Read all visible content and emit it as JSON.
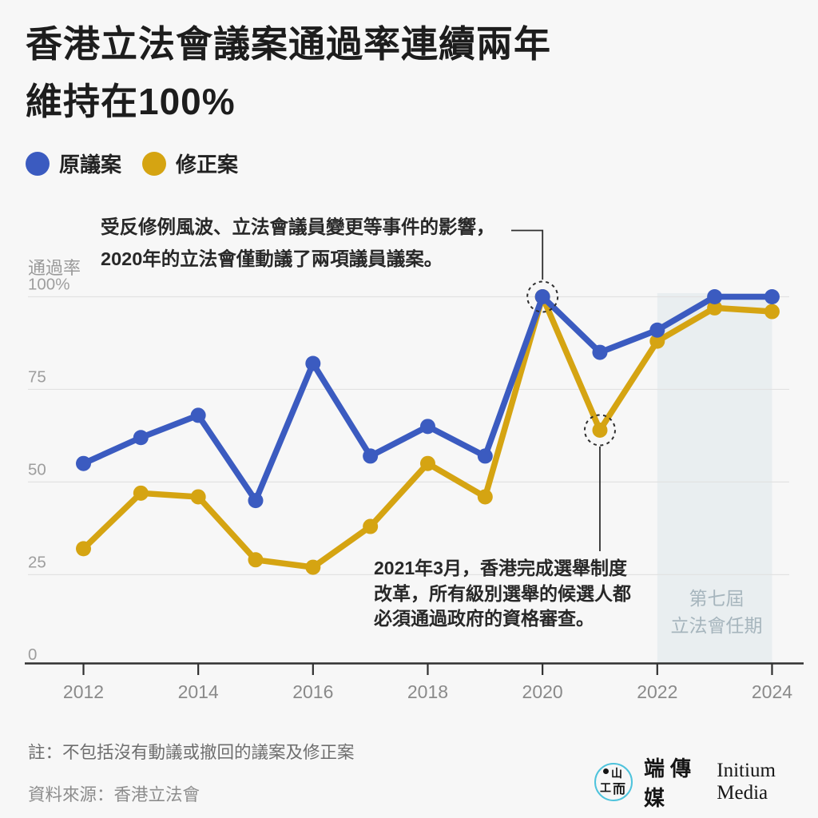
{
  "title": {
    "lines": [
      "香港立法會議案通過率連續兩年",
      "維持在100%"
    ]
  },
  "yaxis_title": "通過率",
  "annotations": {
    "motions2020": {
      "lines": [
        "受反修例風波、立法會議員變更等事件的影響，",
        "2020年的立法會僅動議了兩項議員議案。"
      ]
    },
    "reform2021": {
      "lines": [
        "2021年3月，香港完成選舉制度",
        "改革，所有級別選舉的候選人都",
        "必須通過政府的資格審查。"
      ]
    }
  },
  "footer": {
    "note": "註：不包括沒有動議或撤回的議案及修正案",
    "source": "資料來源：香港立法會",
    "brand_cjk": "端傳媒",
    "brand_latin": "Initium Media",
    "mark_glyphs": {
      "top": "山",
      "left": "工",
      "right": "而"
    }
  },
  "colors": {
    "background": "#f7f7f7",
    "original_bills": "#3b5bc0",
    "amendments": "#d5a412",
    "gridline": "#e2e2e2",
    "axis": "#303030",
    "tick_label": "#9e9e9e",
    "year_label": "#8a8a8a",
    "band_fill": "#e9eef0",
    "band_label": "#a6b5bd",
    "annotation_line": "#2f2f2f"
  },
  "chart_data": {
    "type": "line",
    "x": [
      2012,
      2013,
      2014,
      2015,
      2016,
      2017,
      2018,
      2019,
      2020,
      2021,
      2022,
      2023,
      2024
    ],
    "x_tick_labels": [
      "2012",
      "2014",
      "2016",
      "2018",
      "2020",
      "2022",
      "2024"
    ],
    "y_ticks": [
      {
        "value": 100,
        "label": "100%"
      },
      {
        "value": 75,
        "label": "75"
      },
      {
        "value": 50,
        "label": "50"
      },
      {
        "value": 25,
        "label": "25"
      },
      {
        "value": 0,
        "label": "0"
      }
    ],
    "ylim": [
      0,
      100
    ],
    "ylabel": "通過率",
    "legend_position": "top-left",
    "grid": "horizontal",
    "series": [
      {
        "name": "原議案",
        "color": "#3b5bc0",
        "values": [
          55,
          62,
          68,
          45,
          82,
          57,
          65,
          57,
          100,
          85,
          91,
          100,
          100
        ]
      },
      {
        "name": "修正案",
        "color": "#d5a412",
        "values": [
          32,
          47,
          46,
          29,
          27,
          38,
          55,
          46,
          100,
          64,
          88,
          97,
          96
        ]
      }
    ],
    "highlighted_points": [
      {
        "series": "原議案",
        "year": 2020,
        "value": 100
      },
      {
        "series": "修正案",
        "year": 2021,
        "value": 64
      }
    ],
    "highlight_band": {
      "from": 2022,
      "to": 2024,
      "label": "第七屆 立法會任期"
    },
    "band_label_lines": [
      "第七屆",
      "立法會任期"
    ]
  }
}
